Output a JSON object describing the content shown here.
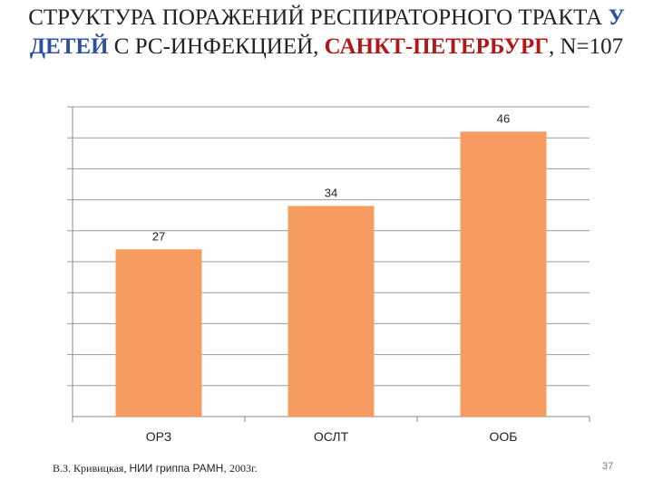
{
  "title": {
    "part1": "СТРУКТУРА ПОРАЖЕНИЙ РЕСПИРАТОРНОГО ТРАКТА ",
    "part2": "У ДЕТЕЙ",
    "part3": " С РС-ИНФЕКЦИЕЙ, ",
    "part4": "САНКТ-ПЕТЕРБУРГ",
    "part5": ", N=107"
  },
  "colors": {
    "bar": "#f79c60",
    "title_blue": "#2e4fa3",
    "title_red": "#b01818"
  },
  "chart_data": {
    "type": "bar",
    "categories": [
      "ОРЗ",
      "ОСЛТ",
      "ООБ"
    ],
    "values": [
      27,
      34,
      46
    ],
    "title": "",
    "xlabel": "",
    "ylabel": "",
    "ylim": [
      0,
      50
    ],
    "grid": true,
    "data_labels": true,
    "legend": "none"
  },
  "footer": {
    "author": "В.З. Кривицкая, ",
    "org": "НИИ гриппа РАМН, ",
    "year": "2003г."
  },
  "page_number": "37"
}
